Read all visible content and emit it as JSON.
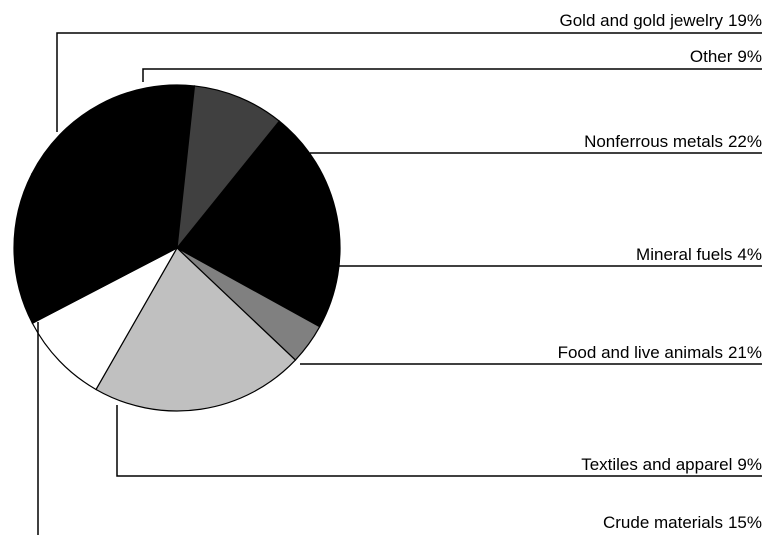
{
  "chart_data": {
    "type": "pie",
    "categories": [
      "Nonferrous metals",
      "Mineral fuels",
      "Food and live animals",
      "Textiles and apparel",
      "Crude materials",
      "Gold and gold jewelry",
      "Other"
    ],
    "values": [
      22,
      4,
      21,
      9,
      15,
      19,
      9
    ],
    "value_labels": [
      "22%",
      "4%",
      "21%",
      "9%",
      "15%",
      "19%",
      "9%"
    ],
    "colors": [
      "#000000",
      "#808080",
      "#c0c0c0",
      "#ffffff",
      "#000000",
      "#000000",
      "#404040"
    ]
  }
}
